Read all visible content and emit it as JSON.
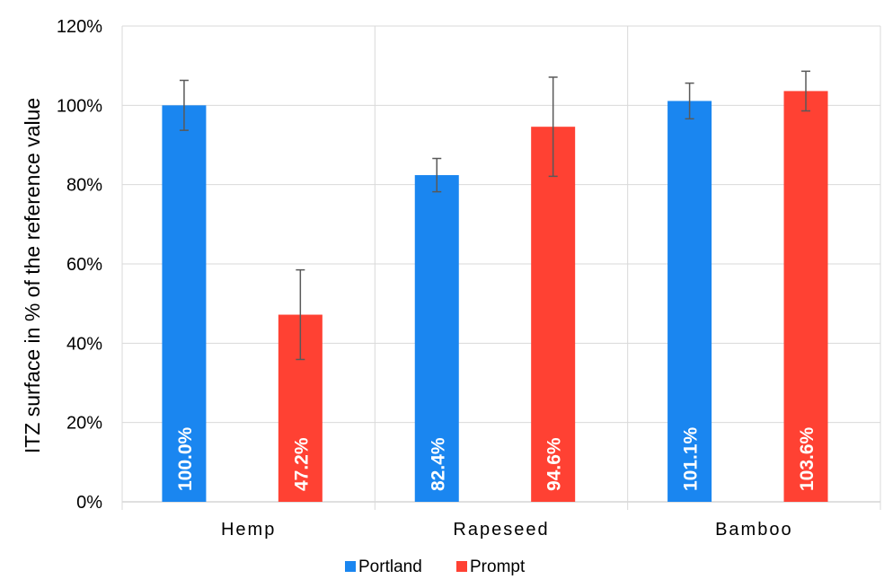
{
  "chart_data": {
    "type": "bar",
    "title": "",
    "xlabel": "",
    "ylabel": "ITZ surface in % of the reference value",
    "categories": [
      "Hemp",
      "Rapeseed",
      "Bamboo"
    ],
    "ylim": [
      0,
      120
    ],
    "yticks": [
      0,
      20,
      40,
      60,
      80,
      100,
      120
    ],
    "ytick_labels": [
      "0%",
      "20%",
      "40%",
      "60%",
      "80%",
      "100%",
      "120%"
    ],
    "grid": true,
    "legend_position": "bottom",
    "series": [
      {
        "name": "Portland",
        "color": "#1a86f0",
        "values": [
          100.0,
          82.4,
          101.1
        ],
        "error": [
          6.3,
          4.2,
          4.5
        ],
        "labels": [
          "100.0%",
          "82.4%",
          "101.1%"
        ]
      },
      {
        "name": "Prompt",
        "color": "#ff4133",
        "values": [
          47.2,
          94.6,
          103.6
        ],
        "error": [
          11.3,
          12.5,
          5.0
        ],
        "labels": [
          "47.2%",
          "94.6%",
          "103.6%"
        ]
      }
    ]
  }
}
